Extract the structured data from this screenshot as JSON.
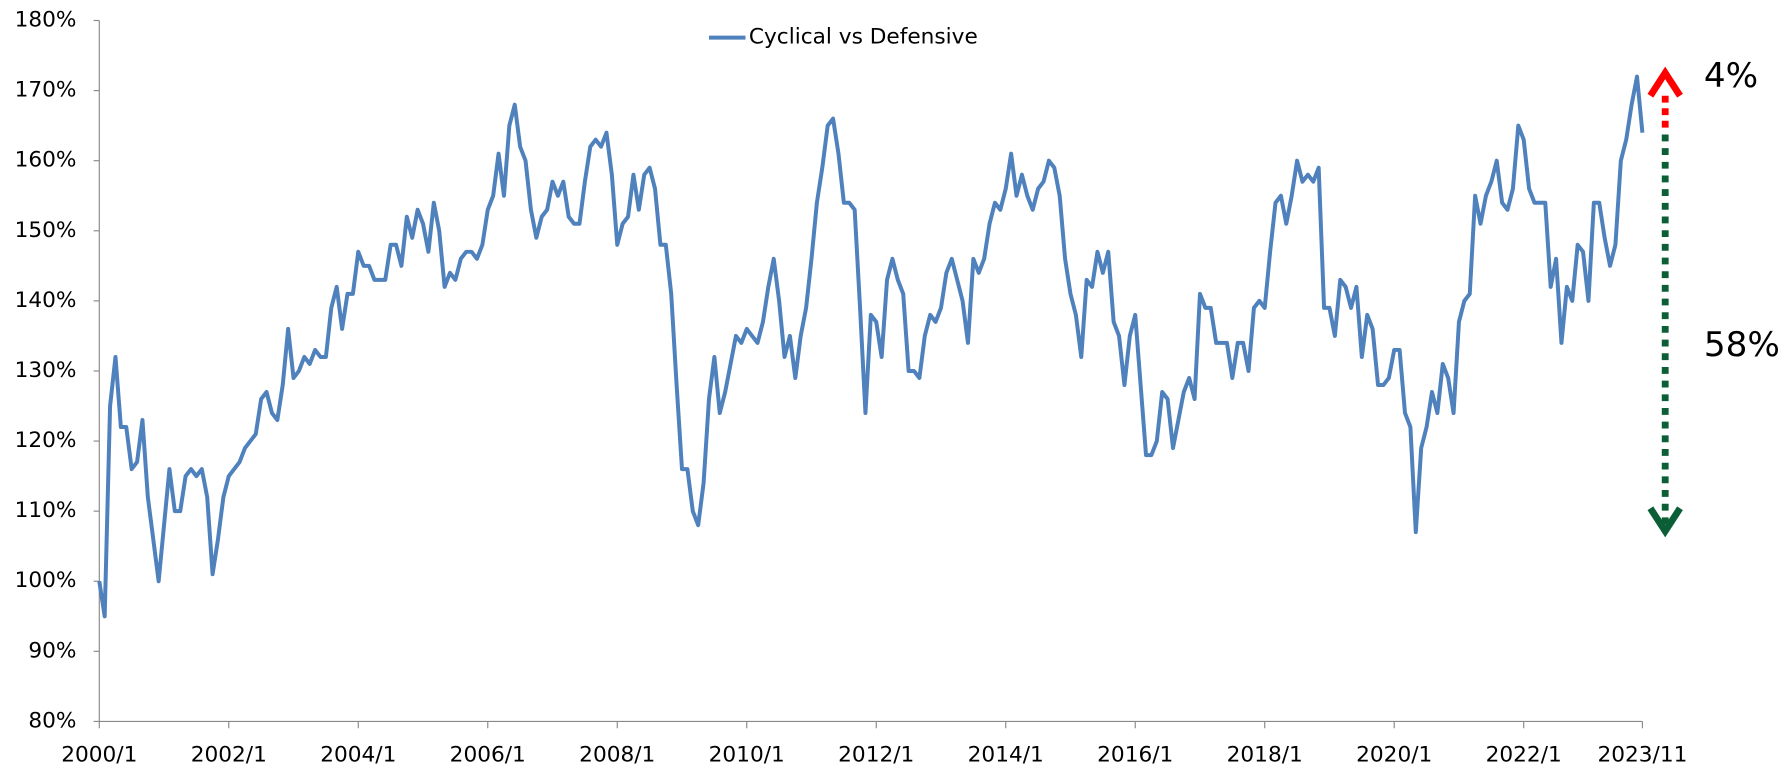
{
  "chart_data": {
    "type": "line",
    "legend": "top",
    "annotations": [
      {
        "text": "4%",
        "color": "#ff0000"
      },
      {
        "text": "58%",
        "color": "#009900"
      }
    ],
    "ylim": [
      80,
      180
    ],
    "yticks": [
      {
        "value": 80,
        "label": "80%"
      },
      {
        "value": 90,
        "label": "90%"
      },
      {
        "value": 100,
        "label": "100%"
      },
      {
        "value": 110,
        "label": "110%"
      },
      {
        "value": 120,
        "label": "120%"
      },
      {
        "value": 130,
        "label": "130%"
      },
      {
        "value": 140,
        "label": "140%"
      },
      {
        "value": 150,
        "label": "150%"
      },
      {
        "value": 160,
        "label": "160%"
      },
      {
        "value": 170,
        "label": "170%"
      },
      {
        "value": 180,
        "label": "180%"
      }
    ],
    "categories": [
      "2000/1",
      null,
      null,
      null,
      null,
      null,
      null,
      null,
      null,
      null,
      null,
      null,
      null,
      null,
      null,
      null,
      null,
      null,
      null,
      null,
      null,
      null,
      null,
      null,
      "2002/1",
      null,
      null,
      null,
      null,
      null,
      null,
      null,
      null,
      null,
      null,
      null,
      null,
      null,
      null,
      null,
      null,
      null,
      null,
      null,
      null,
      null,
      null,
      null,
      "2004/1",
      null,
      null,
      null,
      null,
      null,
      null,
      null,
      null,
      null,
      null,
      null,
      null,
      null,
      null,
      null,
      null,
      null,
      null,
      null,
      null,
      null,
      null,
      null,
      "2006/1",
      null,
      null,
      null,
      null,
      null,
      null,
      null,
      null,
      null,
      null,
      null,
      null,
      null,
      null,
      null,
      null,
      null,
      null,
      null,
      null,
      null,
      null,
      null,
      "2008/1",
      null,
      null,
      null,
      null,
      null,
      null,
      null,
      null,
      null,
      null,
      null,
      null,
      null,
      null,
      null,
      null,
      null,
      null,
      null,
      null,
      null,
      null,
      null,
      "2010/1",
      null,
      null,
      null,
      null,
      null,
      null,
      null,
      null,
      null,
      null,
      null,
      null,
      null,
      null,
      null,
      null,
      null,
      null,
      null,
      null,
      null,
      null,
      null,
      "2012/1",
      null,
      null,
      null,
      null,
      null,
      null,
      null,
      null,
      null,
      null,
      null,
      null,
      null,
      null,
      null,
      null,
      null,
      null,
      null,
      null,
      null,
      null,
      null,
      "2014/1",
      null,
      null,
      null,
      null,
      null,
      null,
      null,
      null,
      null,
      null,
      null,
      null,
      null,
      null,
      null,
      null,
      null,
      null,
      null,
      null,
      null,
      null,
      null,
      "2016/1",
      null,
      null,
      null,
      null,
      null,
      null,
      null,
      null,
      null,
      null,
      null,
      null,
      null,
      null,
      null,
      null,
      null,
      null,
      null,
      null,
      null,
      null,
      null,
      "2018/1",
      null,
      null,
      null,
      null,
      null,
      null,
      null,
      null,
      null,
      null,
      null,
      null,
      null,
      null,
      null,
      null,
      null,
      null,
      null,
      null,
      null,
      null,
      null,
      "2020/1",
      null,
      null,
      null,
      null,
      null,
      null,
      null,
      null,
      null,
      null,
      null,
      null,
      null,
      null,
      null,
      null,
      null,
      null,
      null,
      null,
      null,
      null,
      null,
      "2022/1",
      null,
      null,
      null,
      null,
      null,
      null,
      null,
      null,
      null,
      null,
      null,
      null,
      null,
      null,
      null,
      null,
      null,
      null,
      null,
      null,
      null,
      "2023/11"
    ],
    "series": [
      {
        "name": "Cyclical vs Defensive",
        "color": "#4f81bd",
        "values": [
          100,
          95,
          125,
          132,
          122,
          122,
          116,
          117,
          123,
          112,
          106,
          100,
          108,
          116,
          110,
          110,
          115,
          116,
          115,
          116,
          112,
          101,
          106,
          112,
          115,
          116,
          117,
          119,
          120,
          121,
          126,
          127,
          124,
          123,
          128,
          136,
          129,
          130,
          132,
          131,
          133,
          132,
          132,
          139,
          142,
          136,
          141,
          141,
          147,
          145,
          145,
          143,
          143,
          143,
          148,
          148,
          145,
          152,
          149,
          153,
          151,
          147,
          154,
          150,
          142,
          144,
          143,
          146,
          147,
          147,
          146,
          148,
          153,
          155,
          161,
          155,
          165,
          168,
          162,
          160,
          153,
          149,
          152,
          153,
          157,
          155,
          157,
          152,
          151,
          151,
          157,
          162,
          163,
          162,
          164,
          158,
          148,
          151,
          152,
          158,
          153,
          158,
          159,
          156,
          148,
          148,
          141,
          128,
          116,
          116,
          110,
          108,
          114,
          126,
          132,
          124,
          127,
          131,
          135,
          134,
          136,
          135,
          134,
          137,
          142,
          146,
          140,
          132,
          135,
          129,
          135,
          139,
          146,
          154,
          159,
          165,
          166,
          161,
          154,
          154,
          153,
          139,
          124,
          138,
          137,
          132,
          143,
          146,
          143,
          141,
          130,
          130,
          129,
          135,
          138,
          137,
          139,
          144,
          146,
          143,
          140,
          134,
          146,
          144,
          146,
          151,
          154,
          153,
          156,
          161,
          155,
          158,
          155,
          153,
          156,
          157,
          160,
          159,
          155,
          146,
          141,
          138,
          132,
          143,
          142,
          147,
          144,
          147,
          137,
          135,
          128,
          135,
          138,
          128,
          118,
          118,
          120,
          127,
          126,
          119,
          123,
          127,
          129,
          126,
          141,
          139,
          139,
          134,
          134,
          134,
          129,
          134,
          134,
          130,
          139,
          140,
          139,
          147,
          154,
          155,
          151,
          155,
          160,
          157,
          158,
          157,
          159,
          139,
          139,
          135,
          143,
          142,
          139,
          142,
          132,
          138,
          136,
          128,
          128,
          129,
          133,
          133,
          124,
          122,
          107,
          119,
          122,
          127,
          124,
          131,
          129,
          124,
          137,
          140,
          141,
          155,
          151,
          155,
          157,
          160,
          154,
          153,
          156,
          165,
          163,
          156,
          154,
          154,
          154,
          142,
          146,
          134,
          142,
          140,
          148,
          147,
          140,
          154,
          154,
          149,
          145,
          148,
          160,
          163,
          168,
          172,
          164
        ]
      }
    ]
  }
}
